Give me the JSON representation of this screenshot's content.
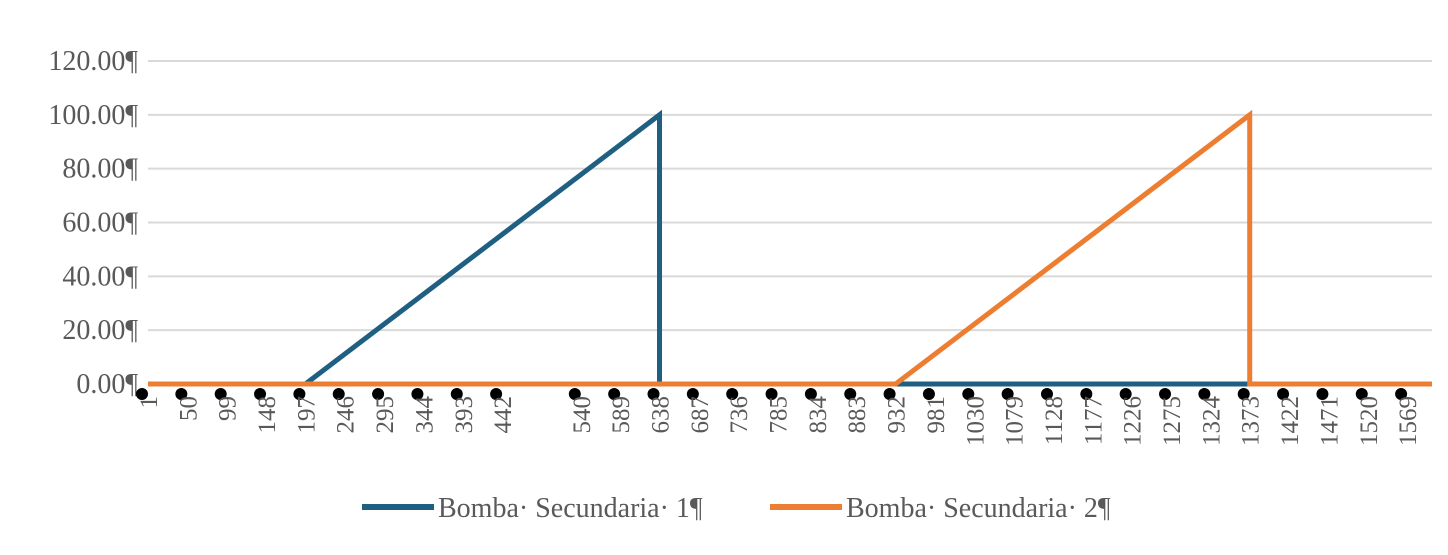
{
  "chart_data": {
    "type": "line",
    "title": "",
    "xlabel": "",
    "ylabel": "",
    "ylim": [
      0,
      120
    ],
    "yticks": [
      "0.00¶",
      "20.00¶",
      "40.00¶",
      "60.00¶",
      "80.00¶",
      "100.00¶",
      "120.00¶"
    ],
    "xlim": [
      1,
      1600
    ],
    "xticks": [
      "1",
      "50",
      "99",
      "148",
      "197",
      "246",
      "295",
      "344",
      "393",
      "442",
      "540",
      "589",
      "638",
      "687",
      "736",
      "785",
      "834",
      "883",
      "932",
      "981",
      "1030",
      "1079",
      "1128",
      "1177",
      "1226",
      "1275",
      "1324",
      "1373",
      "1422",
      "1471",
      "1520",
      "1569"
    ],
    "grid": true,
    "legend_position": "bottom",
    "series": [
      {
        "name": "Bomba· Secundaria· 1¶",
        "color": "#1f5f82",
        "x": [
          1,
          197,
          638,
          638,
          1600
        ],
        "y": [
          0,
          0,
          100,
          0,
          0
        ]
      },
      {
        "name": "Bomba· Secundaria· 2¶",
        "color": "#ed7d31",
        "x": [
          1,
          932,
          1373,
          1373,
          1600
        ],
        "y": [
          0,
          0,
          100,
          0,
          0
        ]
      }
    ]
  }
}
